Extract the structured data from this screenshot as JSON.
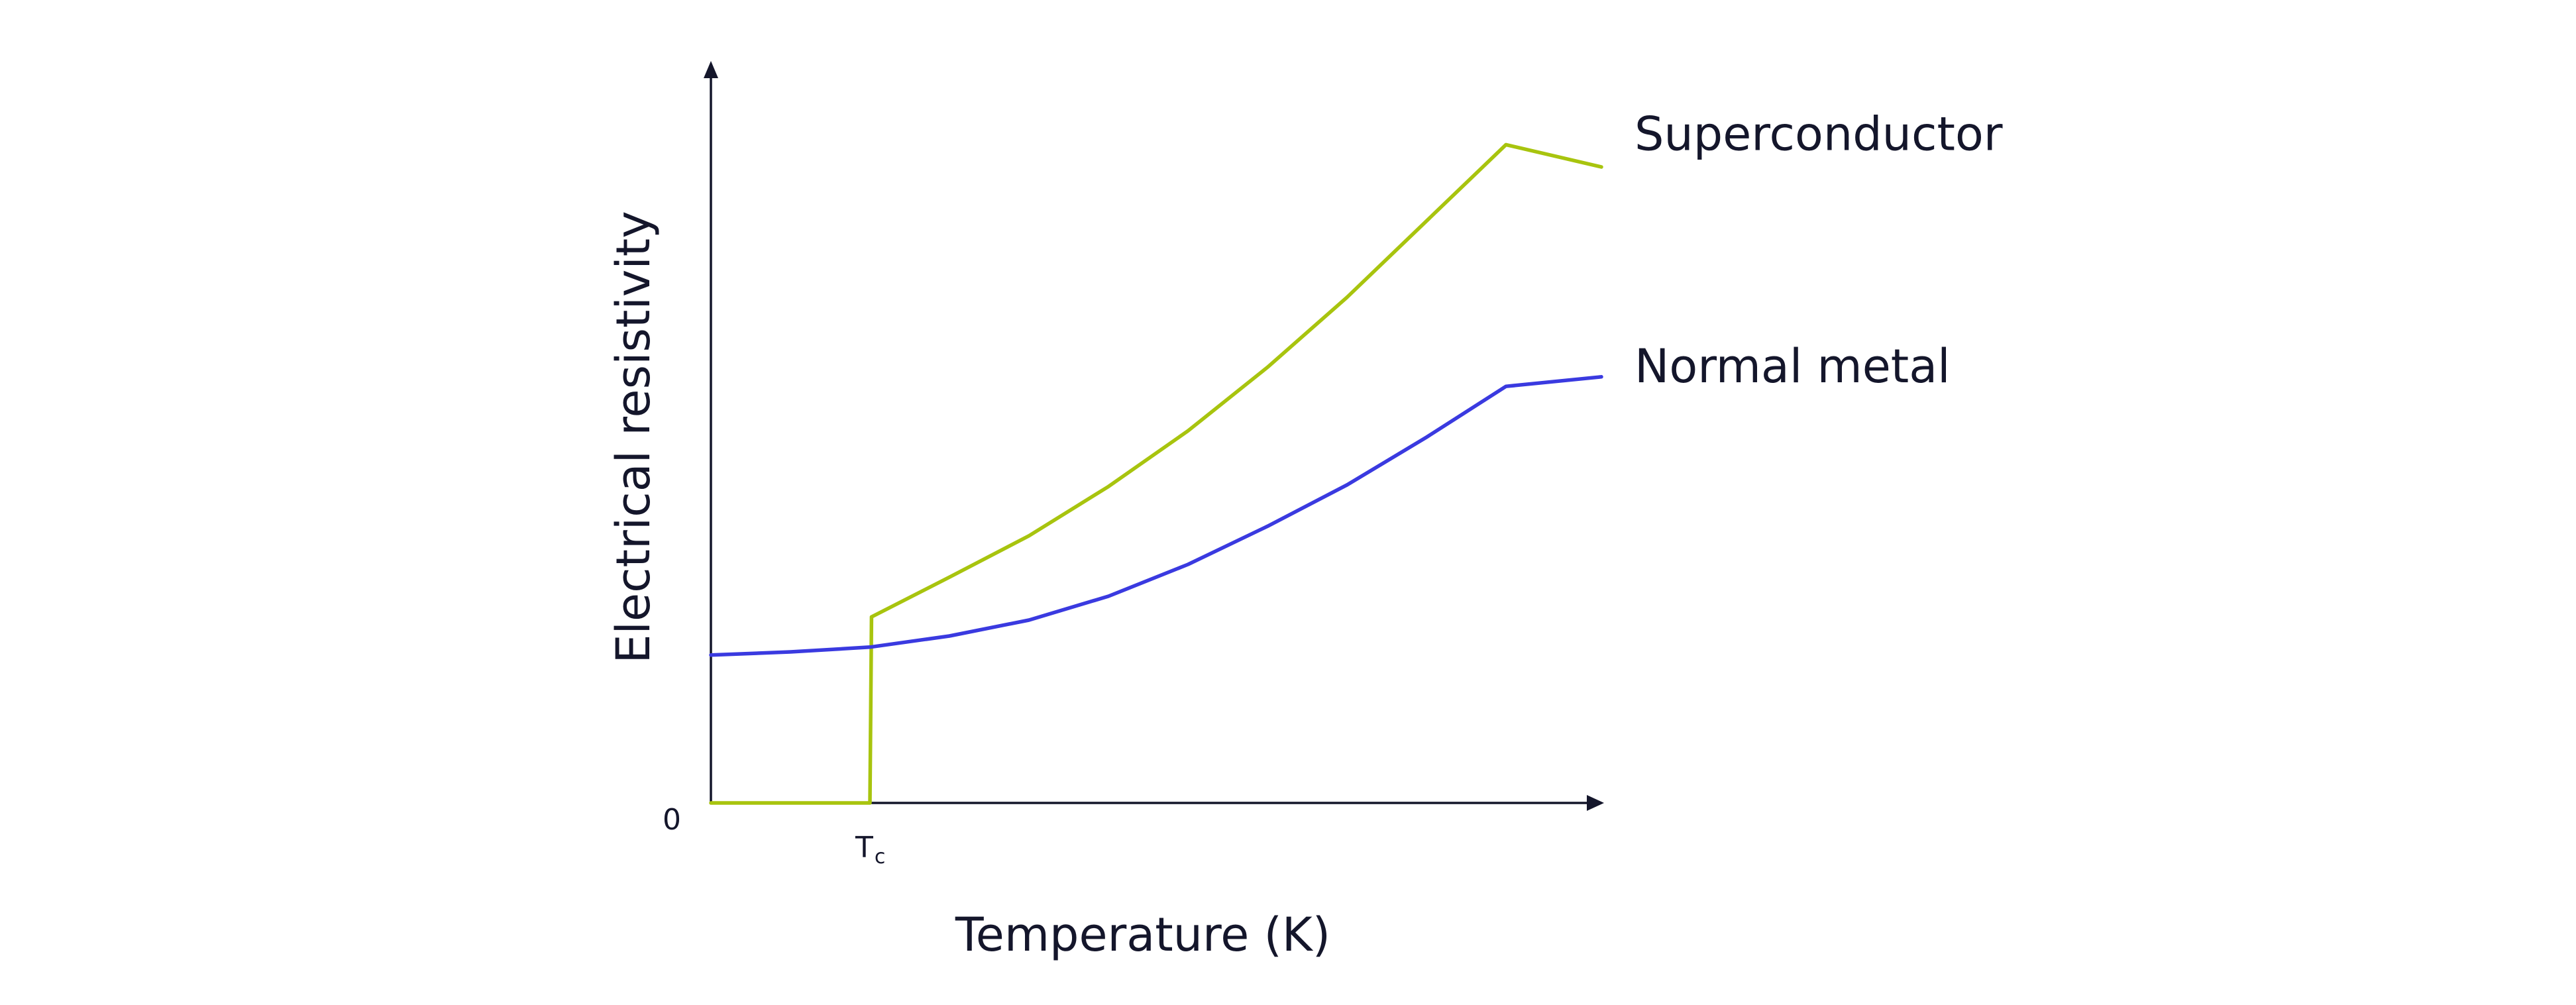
{
  "chart_data": {
    "type": "line",
    "title": "",
    "xlabel": "Temperature (K)",
    "ylabel": "Electrical resistivity",
    "x_ticks": [
      {
        "value": 0,
        "label": "",
        "name": "x-origin-tick"
      },
      {
        "value": 1,
        "label": "T",
        "subscript": "c",
        "name": "tc-tick"
      }
    ],
    "y_ticks": [
      {
        "value": 0,
        "label": "0",
        "name": "y-origin-tick"
      }
    ],
    "xlim": [
      0,
      5.6
    ],
    "ylim": [
      0,
      4.65
    ],
    "grid": false,
    "legend": "inline-right",
    "series": [
      {
        "name": "Superconductor",
        "color": "#a8c40e",
        "x": [
          0,
          1,
          1.01,
          1.5,
          2.0,
          2.5,
          3.0,
          3.5,
          4.0,
          4.5,
          5.0,
          5.6
        ],
        "y": [
          0,
          0,
          1.17,
          1.42,
          1.68,
          1.99,
          2.34,
          2.74,
          3.18,
          3.66,
          4.14,
          4.0
        ]
      },
      {
        "name": "Normal metal",
        "color": "#3a3ae0",
        "x": [
          0,
          0.5,
          1.0,
          1.5,
          2.0,
          2.5,
          3.0,
          3.5,
          4.0,
          4.5,
          5.0,
          5.6
        ],
        "y": [
          0.93,
          0.95,
          0.98,
          1.05,
          1.15,
          1.3,
          1.5,
          1.74,
          2.0,
          2.3,
          2.62,
          2.68
        ]
      }
    ]
  }
}
